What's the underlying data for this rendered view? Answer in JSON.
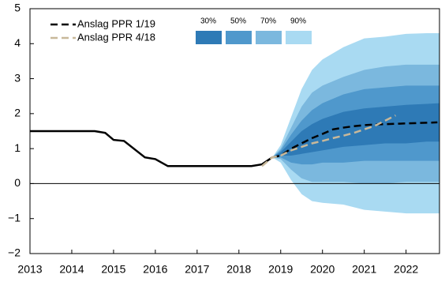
{
  "chart_data": {
    "type": "line",
    "xlim": [
      2013,
      2022.8
    ],
    "ylim": [
      -2,
      5
    ],
    "xticks": [
      2013,
      2014,
      2015,
      2016,
      2017,
      2018,
      2019,
      2020,
      2021,
      2022
    ],
    "yticks": [
      {
        "value": -2,
        "label": "−2"
      },
      {
        "value": -1,
        "label": "−1"
      },
      0,
      1,
      2,
      3,
      4,
      5
    ],
    "zero_line": true,
    "legend": "upper left",
    "series": [
      {
        "color": "#000000",
        "dashed": false,
        "x": [
          2013,
          2014.55,
          2014.8,
          2015.0,
          2015.25,
          2015.75,
          2016.0,
          2016.3,
          2018.3,
          2018.55,
          2018.8
        ],
        "values": [
          1.5,
          1.5,
          1.45,
          1.25,
          1.22,
          0.75,
          0.7,
          0.5,
          0.5,
          0.55,
          0.75
        ]
      },
      {
        "name": "Anslag PPR 1/19",
        "color": "#000000",
        "dashed": true,
        "x": [
          2018.8,
          2019.0,
          2019.25,
          2019.5,
          2019.75,
          2020.0,
          2020.25,
          2020.5,
          2020.75,
          2021.0,
          2021.25,
          2021.5,
          2021.75,
          2022.0,
          2022.25,
          2022.5,
          2022.75
        ],
        "values": [
          0.75,
          0.8,
          1.0,
          1.15,
          1.3,
          1.42,
          1.55,
          1.6,
          1.64,
          1.67,
          1.69,
          1.7,
          1.71,
          1.72,
          1.73,
          1.74,
          1.75
        ]
      },
      {
        "name": "Anslag PPR 4/18",
        "color": "#c8b89a",
        "dashed": true,
        "x": [
          2018.55,
          2018.8,
          2019.0,
          2019.25,
          2019.5,
          2019.75,
          2020.0,
          2020.25,
          2020.5,
          2020.75,
          2021.0,
          2021.25,
          2021.5,
          2021.75
        ],
        "values": [
          0.5,
          0.75,
          0.8,
          0.95,
          1.05,
          1.15,
          1.22,
          1.3,
          1.37,
          1.45,
          1.55,
          1.65,
          1.8,
          1.95
        ]
      }
    ],
    "fan": {
      "x": [
        2018.8,
        2019.0,
        2019.25,
        2019.5,
        2019.75,
        2020.0,
        2020.5,
        2021.0,
        2021.5,
        2022.0,
        2022.5,
        2022.8
      ],
      "bands": [
        {
          "name": "90%",
          "color": "#a9daf2",
          "upper": [
            0.75,
            1.1,
            1.9,
            2.7,
            3.25,
            3.55,
            3.9,
            4.15,
            4.2,
            4.28,
            4.3,
            4.3
          ],
          "lower": [
            0.75,
            0.6,
            0.1,
            -0.3,
            -0.5,
            -0.55,
            -0.6,
            -0.75,
            -0.8,
            -0.85,
            -0.85,
            -0.85
          ]
        },
        {
          "name": "70%",
          "color": "#7bb8de",
          "upper": [
            0.75,
            1.0,
            1.6,
            2.2,
            2.6,
            2.8,
            3.05,
            3.25,
            3.35,
            3.4,
            3.4,
            3.4
          ],
          "lower": [
            0.75,
            0.7,
            0.4,
            0.15,
            0.05,
            0.05,
            0.05,
            0.0,
            0.0,
            0.05,
            0.05,
            0.05
          ]
        },
        {
          "name": "50%",
          "color": "#4f98cc",
          "upper": [
            0.75,
            0.95,
            1.4,
            1.8,
            2.1,
            2.3,
            2.55,
            2.7,
            2.75,
            2.8,
            2.8,
            2.8
          ],
          "lower": [
            0.75,
            0.75,
            0.6,
            0.55,
            0.55,
            0.6,
            0.6,
            0.65,
            0.65,
            0.65,
            0.65,
            0.65
          ]
        },
        {
          "name": "30%",
          "color": "#2e7ab6",
          "upper": [
            0.75,
            0.9,
            1.2,
            1.5,
            1.7,
            1.85,
            2.05,
            2.15,
            2.2,
            2.25,
            2.28,
            2.3
          ],
          "lower": [
            0.75,
            0.8,
            0.8,
            0.85,
            0.9,
            0.95,
            1.05,
            1.1,
            1.15,
            1.15,
            1.2,
            1.2
          ]
        }
      ]
    }
  }
}
